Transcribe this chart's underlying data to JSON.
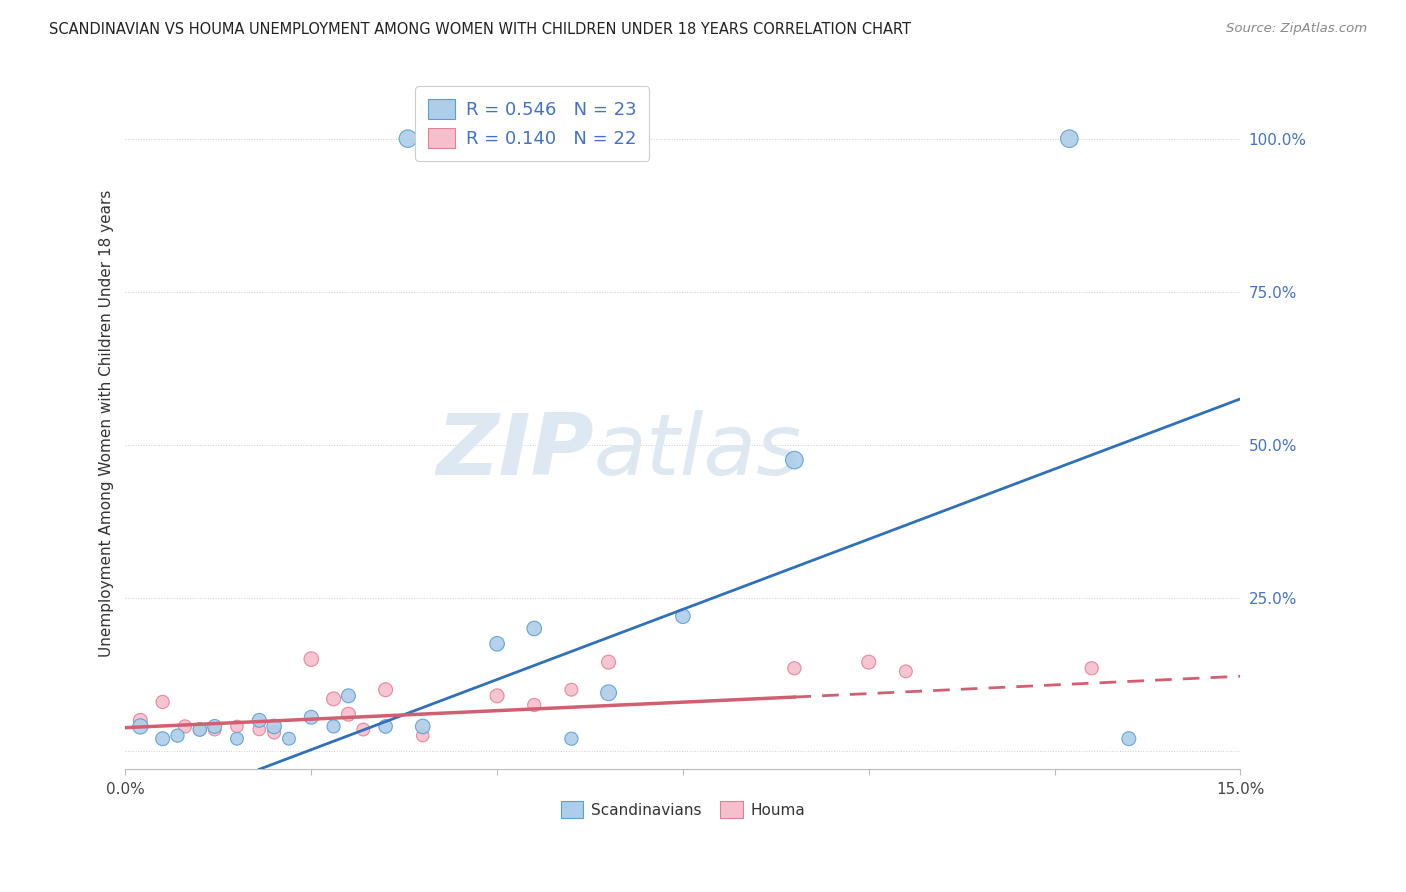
{
  "title": "SCANDINAVIAN VS HOUMA UNEMPLOYMENT AMONG WOMEN WITH CHILDREN UNDER 18 YEARS CORRELATION CHART",
  "source": "Source: ZipAtlas.com",
  "ylabel": "Unemployment Among Women with Children Under 18 years",
  "xlim": [
    0.0,
    0.15
  ],
  "ylim": [
    -0.03,
    1.1
  ],
  "xtick_positions": [
    0.0,
    0.025,
    0.05,
    0.075,
    0.1,
    0.125,
    0.15
  ],
  "xtick_labels": [
    "0.0%",
    "",
    "",
    "",
    "",
    "",
    "15.0%"
  ],
  "yticks_right": [
    0.0,
    0.25,
    0.5,
    0.75,
    1.0
  ],
  "ytick_labels_right": [
    "",
    "25.0%",
    "50.0%",
    "75.0%",
    "100.0%"
  ],
  "legend_r_blue": "0.546",
  "legend_n_blue": "23",
  "legend_r_pink": "0.140",
  "legend_n_pink": "22",
  "legend_label_blue": "Scandinavians",
  "legend_label_pink": "Houma",
  "blue_face_color": "#aecde8",
  "blue_edge_color": "#5a9fd4",
  "pink_face_color": "#f5bfcc",
  "pink_edge_color": "#e08098",
  "blue_line_color": "#3070b8",
  "pink_line_color": "#d06070",
  "watermark_zip": "ZIP",
  "watermark_atlas": "atlas",
  "watermark_color": "#dde8f2",
  "background_color": "#ffffff",
  "grid_color": "#cccccc",
  "scandinavian_x": [
    0.002,
    0.005,
    0.007,
    0.01,
    0.012,
    0.015,
    0.018,
    0.02,
    0.022,
    0.025,
    0.028,
    0.03,
    0.035,
    0.038,
    0.04,
    0.05,
    0.055,
    0.06,
    0.065,
    0.075,
    0.09,
    0.127,
    0.135
  ],
  "scandinavian_y": [
    0.04,
    0.02,
    0.025,
    0.035,
    0.04,
    0.02,
    0.05,
    0.04,
    0.02,
    0.055,
    0.04,
    0.09,
    0.04,
    1.0,
    0.04,
    0.175,
    0.2,
    0.02,
    0.095,
    0.22,
    0.475,
    1.0,
    0.02
  ],
  "scandinavian_sizes": [
    120,
    100,
    90,
    95,
    100,
    85,
    100,
    110,
    85,
    100,
    90,
    100,
    95,
    160,
    110,
    110,
    110,
    90,
    130,
    110,
    160,
    160,
    100
  ],
  "houma_x": [
    0.002,
    0.005,
    0.008,
    0.01,
    0.012,
    0.015,
    0.018,
    0.02,
    0.025,
    0.028,
    0.03,
    0.032,
    0.035,
    0.04,
    0.05,
    0.055,
    0.06,
    0.065,
    0.09,
    0.1,
    0.105,
    0.13
  ],
  "houma_y": [
    0.05,
    0.08,
    0.04,
    0.035,
    0.035,
    0.04,
    0.035,
    0.03,
    0.15,
    0.085,
    0.06,
    0.035,
    0.1,
    0.025,
    0.09,
    0.075,
    0.1,
    0.145,
    0.135,
    0.145,
    0.13,
    0.135
  ],
  "houma_sizes": [
    100,
    90,
    90,
    85,
    85,
    80,
    80,
    85,
    110,
    100,
    100,
    85,
    100,
    80,
    100,
    90,
    85,
    100,
    90,
    100,
    85,
    90
  ],
  "blue_line_x0": 0.018,
  "blue_line_y0": -0.03,
  "blue_line_x1": 0.15,
  "blue_line_y1": 0.575,
  "pink_line_x0": 0.0,
  "pink_line_y0": 0.038,
  "pink_line_x1_solid": 0.09,
  "pink_line_y1_solid": 0.088,
  "pink_line_x1_dashed": 0.15,
  "pink_line_y1_dashed": 0.122,
  "title_fontsize": 10.5,
  "axis_label_fontsize": 11,
  "tick_fontsize": 11,
  "legend_fontsize": 13
}
